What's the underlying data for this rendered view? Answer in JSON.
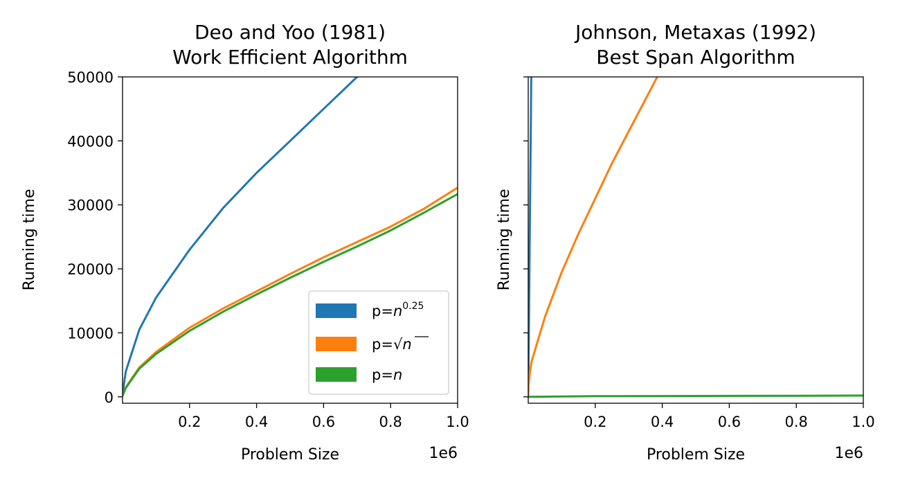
{
  "colors": {
    "blue": "#1f77b4",
    "orange": "#ff7f0e",
    "green": "#2ca02c"
  },
  "chart_data": [
    {
      "type": "line",
      "title": "Deo and Yoo (1981)",
      "subtitle": "Work Efficient Algorithm",
      "xlabel": "Problem Size",
      "ylabel": "Running time",
      "x_offset_label": "1e6",
      "xlim": [
        0,
        1.0
      ],
      "ylim": [
        -1000,
        50000
      ],
      "x_ticks": [
        0.2,
        0.4,
        0.6,
        0.8,
        1.0
      ],
      "x_tick_labels": [
        "0.2",
        "0.4",
        "0.6",
        "0.8",
        "1.0"
      ],
      "y_ticks": [
        0,
        10000,
        20000,
        30000,
        40000,
        50000
      ],
      "y_tick_labels": [
        "0",
        "10000",
        "20000",
        "30000",
        "40000",
        "50000"
      ],
      "grid": false,
      "legend_position": "lower-right",
      "series": [
        {
          "name": "p=n^0.25",
          "color": "blue",
          "x": [
            0.0001,
            0.001,
            0.01,
            0.05,
            0.1,
            0.2,
            0.3,
            0.4,
            0.5,
            0.6,
            0.7,
            0.75
          ],
          "y": [
            300,
            900,
            4000,
            10500,
            15500,
            23000,
            29500,
            35000,
            40000,
            45000,
            50000,
            52000
          ]
        },
        {
          "name": "p=sqrt(n)",
          "color": "orange",
          "x": [
            0.0001,
            0.001,
            0.01,
            0.05,
            0.1,
            0.2,
            0.3,
            0.4,
            0.5,
            0.6,
            0.7,
            0.8,
            0.9,
            1.0
          ],
          "y": [
            100,
            330,
            1500,
            4600,
            7000,
            10800,
            13800,
            16500,
            19200,
            21800,
            24200,
            26600,
            29400,
            32700
          ]
        },
        {
          "name": "p=n",
          "color": "green",
          "x": [
            0.0001,
            0.001,
            0.01,
            0.05,
            0.1,
            0.2,
            0.3,
            0.4,
            0.5,
            0.6,
            0.7,
            0.8,
            0.9,
            1.0
          ],
          "y": [
            100,
            320,
            1400,
            4400,
            6700,
            10300,
            13300,
            16000,
            18600,
            21100,
            23500,
            26000,
            28800,
            31700
          ]
        }
      ],
      "legend": [
        {
          "prefix": "p=",
          "base": "n",
          "sup": "0.25",
          "color": "blue"
        },
        {
          "prefix": "p=",
          "sqrt": "√",
          "base": "n",
          "color": "orange"
        },
        {
          "prefix": "p=",
          "base": "n",
          "color": "green"
        }
      ]
    },
    {
      "type": "line",
      "title": "Johnson, Metaxas (1992)",
      "subtitle": "Best Span Algorithm",
      "xlabel": "Problem Size",
      "ylabel": "Running time",
      "x_offset_label": "1e6",
      "xlim": [
        0,
        1.0
      ],
      "ylim": [
        -1000,
        50000
      ],
      "x_ticks": [
        0.2,
        0.4,
        0.6,
        0.8,
        1.0
      ],
      "x_tick_labels": [
        "0.2",
        "0.4",
        "0.6",
        "0.8",
        "1.0"
      ],
      "y_ticks": [
        0,
        10000,
        20000,
        30000,
        40000,
        50000
      ],
      "y_tick_labels": [],
      "grid": false,
      "series": [
        {
          "name": "p=n^0.25",
          "color": "blue",
          "x": [
            0.0,
            0.0005,
            0.001,
            0.002,
            0.004,
            0.006,
            0.008,
            0.0092
          ],
          "y": [
            0,
            2500,
            5500,
            11000,
            22000,
            33000,
            44000,
            52000
          ]
        },
        {
          "name": "p=sqrt(n)",
          "color": "orange",
          "x": [
            0.0,
            0.001,
            0.005,
            0.01,
            0.03,
            0.05,
            0.1,
            0.15,
            0.2,
            0.25,
            0.3,
            0.35,
            0.39
          ],
          "y": [
            0,
            1800,
            3800,
            5500,
            9000,
            12500,
            19500,
            25500,
            31000,
            36500,
            41500,
            46500,
            50500
          ]
        },
        {
          "name": "p=n",
          "color": "green",
          "x": [
            0.0,
            0.2,
            0.4,
            0.6,
            0.8,
            1.0
          ],
          "y": [
            0,
            100,
            130,
            150,
            170,
            200
          ]
        }
      ]
    }
  ]
}
